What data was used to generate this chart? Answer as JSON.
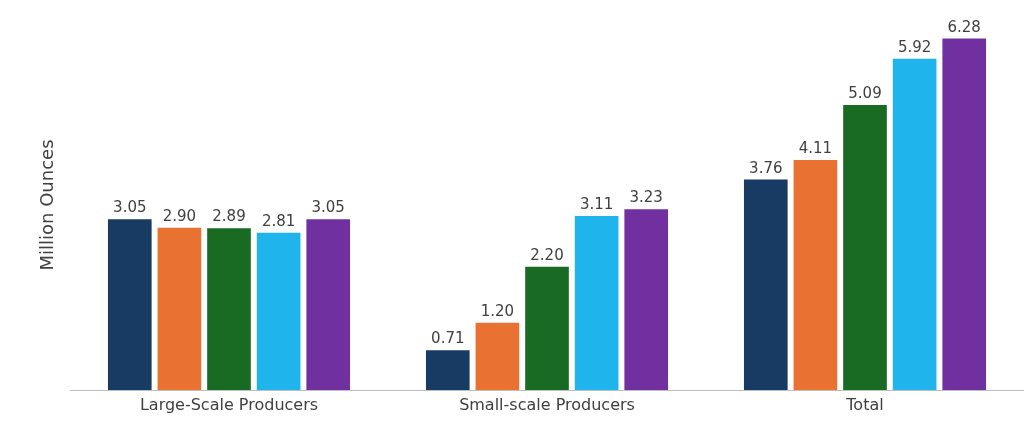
{
  "chart_data": {
    "type": "bar",
    "ylabel": "Million Ounces",
    "categories": [
      "Large-Scale Producers",
      "Small-scale Producers",
      "Total"
    ],
    "series": [
      {
        "color": "#173b63",
        "values": [
          3.05,
          0.71,
          3.76
        ],
        "value_labels": [
          "3.05",
          "0.71",
          "3.76"
        ]
      },
      {
        "color": "#e97132",
        "values": [
          2.9,
          1.2,
          4.11
        ],
        "value_labels": [
          "2.90",
          "1.20",
          "4.11"
        ]
      },
      {
        "color": "#196b24",
        "values": [
          2.89,
          2.2,
          5.09
        ],
        "value_labels": [
          "2.89",
          "2.20",
          "5.09"
        ]
      },
      {
        "color": "#1fb5ec",
        "values": [
          2.81,
          3.11,
          5.92
        ],
        "value_labels": [
          "2.81",
          "3.11",
          "5.92"
        ]
      },
      {
        "color": "#7030a0",
        "values": [
          3.05,
          3.23,
          6.28
        ],
        "value_labels": [
          "3.05",
          "3.23",
          "6.28"
        ]
      }
    ],
    "grid": false,
    "legend": false
  }
}
